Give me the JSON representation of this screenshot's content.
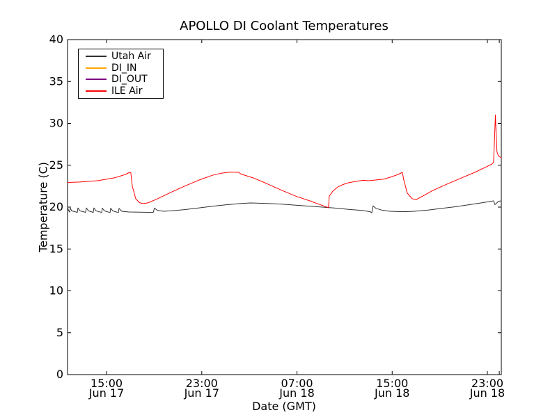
{
  "figure": {
    "background": "#ffffff",
    "frame_color": "#000000"
  },
  "chart_data": {
    "type": "line",
    "title": "APOLLO DI Coolant Temperatures",
    "xlabel": "Date (GMT)",
    "ylabel": "Temperature (C)",
    "axes": {
      "x_unit": "hours since Jun 17 00:00 GMT",
      "x_domain_hours": [
        11.72,
        48.17
      ],
      "y_domain": [
        0,
        40
      ],
      "y_ticks": [
        0,
        5,
        10,
        15,
        20,
        25,
        30,
        35,
        40
      ],
      "x_ticks": [
        {
          "t": 15,
          "label_line1": "15:00",
          "label_line2": "Jun 17"
        },
        {
          "t": 23,
          "label_line1": "23:00",
          "label_line2": "Jun 17"
        },
        {
          "t": 31,
          "label_line1": "07:00",
          "label_line2": "Jun 18"
        },
        {
          "t": 39,
          "label_line1": "15:00",
          "label_line2": "Jun 18"
        },
        {
          "t": 47,
          "label_line1": "23:00",
          "label_line2": "Jun 18"
        }
      ],
      "extra_x_ticks": [
        48
      ],
      "grid": false,
      "tick_direction": "in"
    },
    "legend": {
      "position": "upper left"
    },
    "series": [
      {
        "name": "Utah Air",
        "color": "#303030",
        "points": [
          [
            11.72,
            19.95
          ],
          [
            11.84,
            19.5
          ],
          [
            11.9,
            19.4
          ],
          [
            11.95,
            19.9
          ],
          [
            12.07,
            19.55
          ],
          [
            12.54,
            19.38
          ],
          [
            12.6,
            19.9
          ],
          [
            12.77,
            19.55
          ],
          [
            13.24,
            19.38
          ],
          [
            13.3,
            19.9
          ],
          [
            13.48,
            19.55
          ],
          [
            13.88,
            19.37
          ],
          [
            13.94,
            19.9
          ],
          [
            14.12,
            19.55
          ],
          [
            14.59,
            19.36
          ],
          [
            14.64,
            19.88
          ],
          [
            14.82,
            19.55
          ],
          [
            15.29,
            19.35
          ],
          [
            15.35,
            19.87
          ],
          [
            15.52,
            19.55
          ],
          [
            15.99,
            19.35
          ],
          [
            16.05,
            19.85
          ],
          [
            16.28,
            19.5
          ],
          [
            16.87,
            19.42
          ],
          [
            17.75,
            19.4
          ],
          [
            18.92,
            19.37
          ],
          [
            19.03,
            19.88
          ],
          [
            19.27,
            19.6
          ],
          [
            19.79,
            19.5
          ],
          [
            20.38,
            19.55
          ],
          [
            21.55,
            19.7
          ],
          [
            22.72,
            19.9
          ],
          [
            23.89,
            20.1
          ],
          [
            25.06,
            20.28
          ],
          [
            26.23,
            20.42
          ],
          [
            27.1,
            20.5
          ],
          [
            28.27,
            20.45
          ],
          [
            29.74,
            20.35
          ],
          [
            31.2,
            20.2
          ],
          [
            32.66,
            20.05
          ],
          [
            33.4,
            19.97
          ],
          [
            34.12,
            19.9
          ],
          [
            35.58,
            19.7
          ],
          [
            36.46,
            19.6
          ],
          [
            37.16,
            19.45
          ],
          [
            37.28,
            19.3
          ],
          [
            37.4,
            20.15
          ],
          [
            37.63,
            19.85
          ],
          [
            38.1,
            19.65
          ],
          [
            38.8,
            19.5
          ],
          [
            39.97,
            19.45
          ],
          [
            40.85,
            19.5
          ],
          [
            42.02,
            19.65
          ],
          [
            43.19,
            19.85
          ],
          [
            44.36,
            20.05
          ],
          [
            45.53,
            20.3
          ],
          [
            46.7,
            20.55
          ],
          [
            47.29,
            20.7
          ],
          [
            47.52,
            20.75
          ],
          [
            47.64,
            20.3
          ],
          [
            47.75,
            20.45
          ],
          [
            47.93,
            20.7
          ],
          [
            48.17,
            20.75
          ]
        ]
      },
      {
        "name": "DI_IN",
        "color": "#ffa500",
        "points": []
      },
      {
        "name": "DI_OUT",
        "color": "#800080",
        "points": []
      },
      {
        "name": "ILE Air",
        "color": "#ff0000",
        "points": [
          [
            11.72,
            22.95
          ],
          [
            12.77,
            23.0
          ],
          [
            14.24,
            23.15
          ],
          [
            15.7,
            23.5
          ],
          [
            16.58,
            23.9
          ],
          [
            16.93,
            24.15
          ],
          [
            17.04,
            24.1
          ],
          [
            17.16,
            22.5
          ],
          [
            17.45,
            21.0
          ],
          [
            17.75,
            20.55
          ],
          [
            18.04,
            20.42
          ],
          [
            18.45,
            20.5
          ],
          [
            19.21,
            20.95
          ],
          [
            20.38,
            21.75
          ],
          [
            21.55,
            22.5
          ],
          [
            22.72,
            23.2
          ],
          [
            23.89,
            23.8
          ],
          [
            24.65,
            24.05
          ],
          [
            25.35,
            24.18
          ],
          [
            26.11,
            24.15
          ],
          [
            26.28,
            23.95
          ],
          [
            27.4,
            23.45
          ],
          [
            28.56,
            22.75
          ],
          [
            29.74,
            22.0
          ],
          [
            30.91,
            21.3
          ],
          [
            32.08,
            20.75
          ],
          [
            32.84,
            20.35
          ],
          [
            33.42,
            20.05
          ],
          [
            33.65,
            19.93
          ],
          [
            33.71,
            21.3
          ],
          [
            34.01,
            21.9
          ],
          [
            34.42,
            22.4
          ],
          [
            34.88,
            22.7
          ],
          [
            35.28,
            22.9
          ],
          [
            35.87,
            23.05
          ],
          [
            36.57,
            23.2
          ],
          [
            37.04,
            23.15
          ],
          [
            37.74,
            23.25
          ],
          [
            38.33,
            23.35
          ],
          [
            38.91,
            23.6
          ],
          [
            39.5,
            23.9
          ],
          [
            39.85,
            24.15
          ],
          [
            39.97,
            23.3
          ],
          [
            40.26,
            21.7
          ],
          [
            40.67,
            21.0
          ],
          [
            41.02,
            20.9
          ],
          [
            41.61,
            21.35
          ],
          [
            42.43,
            22.0
          ],
          [
            43.6,
            22.75
          ],
          [
            44.77,
            23.45
          ],
          [
            45.94,
            24.15
          ],
          [
            46.82,
            24.75
          ],
          [
            47.34,
            25.1
          ],
          [
            47.52,
            25.35
          ],
          [
            47.61,
            28.5
          ],
          [
            47.67,
            31.0
          ],
          [
            47.73,
            29.0
          ],
          [
            47.81,
            26.6
          ],
          [
            47.93,
            26.1
          ],
          [
            48.17,
            25.9
          ]
        ]
      }
    ]
  }
}
